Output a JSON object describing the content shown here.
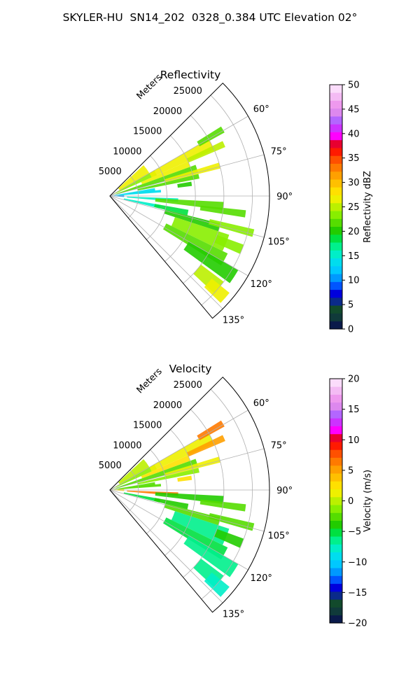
{
  "suptitle": "SKYLER-HU  SN14_202  0328_0.384 UTC Elevation 02°",
  "chart_data": [
    {
      "type": "polar-sector",
      "title": "Reflectivity",
      "radial_label": "Meters",
      "radial_ticks": [
        5000,
        10000,
        15000,
        20000,
        25000
      ],
      "radial_tick_labels": [
        "5000",
        "10000",
        "15000",
        "20000",
        "25000"
      ],
      "rlim": [
        0,
        28000
      ],
      "angle_range_deg": [
        45,
        140
      ],
      "angle_ticks_deg": [
        60,
        75,
        90,
        105,
        120,
        135
      ],
      "angle_tick_labels": [
        "60°",
        "75°",
        "90°",
        "105°",
        "120°",
        "135°"
      ],
      "grid": true,
      "colorbar": {
        "label": "Reflectivity dBZ",
        "min": 0,
        "max": 50,
        "ticks": [
          0,
          5,
          10,
          15,
          20,
          25,
          30,
          35,
          40,
          45,
          50
        ],
        "tick_labels": [
          "0",
          "5",
          "10",
          "15",
          "20",
          "25",
          "30",
          "35",
          "40",
          "45",
          "50"
        ],
        "colors": [
          "#0a1a4a",
          "#103a3a",
          "#124a2c",
          "#0a2a8a",
          "#0000dd",
          "#0055ff",
          "#0099ff",
          "#00c8ff",
          "#00ddee",
          "#00eec8",
          "#00f08c",
          "#00e040",
          "#22cc00",
          "#55dd00",
          "#88ee00",
          "#bbf000",
          "#eef000",
          "#ffe000",
          "#ffc000",
          "#ffa000",
          "#ff7a00",
          "#ff5000",
          "#ff1a00",
          "#e80030",
          "#ff00ff",
          "#cc33ff",
          "#b366ff",
          "#dd88ee",
          "#ee99ee",
          "#f4bbf4",
          "#fbdcfb"
        ]
      },
      "echoes": [
        {
          "a1": 47.5,
          "a2": 60.5,
          "r1": 2000,
          "r2": 8000,
          "value": 26
        },
        {
          "a1": 60,
          "a2": 66,
          "r1": 600,
          "r2": 9000,
          "value": 24
        },
        {
          "a1": 60,
          "a2": 66,
          "r1": 8000,
          "r2": 20000,
          "value": 26
        },
        {
          "a1": 66,
          "a2": 70,
          "r1": 6000,
          "r2": 15000,
          "value": 27
        },
        {
          "a1": 64,
          "a2": 67,
          "r1": 15000,
          "r2": 22000,
          "value": 25
        },
        {
          "a1": 58,
          "a2": 61,
          "r1": 18000,
          "r2": 23000,
          "value": 22
        },
        {
          "a1": 70,
          "a2": 75,
          "r1": 1200,
          "r2": 16000,
          "value": 22
        },
        {
          "a1": 73,
          "a2": 76,
          "r1": 10000,
          "r2": 20000,
          "value": 26
        },
        {
          "a1": 76,
          "a2": 79,
          "r1": 5000,
          "r2": 16000,
          "value": 21
        },
        {
          "a1": 80,
          "a2": 84,
          "r1": 800,
          "r2": 8000,
          "value": 14
        },
        {
          "a1": 83,
          "a2": 86,
          "r1": 1500,
          "r2": 9000,
          "value": 13
        },
        {
          "a1": 80,
          "a2": 83,
          "r1": 12000,
          "r2": 14500,
          "value": 20
        },
        {
          "a1": 86,
          "a2": 94,
          "r1": 300,
          "r2": 2500,
          "value": 11
        },
        {
          "a1": 92,
          "a2": 95,
          "r1": 3000,
          "r2": 12000,
          "value": 15
        },
        {
          "a1": 93,
          "a2": 97,
          "r1": 8000,
          "r2": 20000,
          "value": 21
        },
        {
          "a1": 96,
          "a2": 99,
          "r1": 16000,
          "r2": 24000,
          "value": 22
        },
        {
          "a1": 100,
          "a2": 104,
          "r1": 2500,
          "r2": 9000,
          "value": 15
        },
        {
          "a1": 100,
          "a2": 104,
          "r1": 8000,
          "r2": 14000,
          "value": 18
        },
        {
          "a1": 104,
          "a2": 108,
          "r1": 10000,
          "r2": 20000,
          "value": 20
        },
        {
          "a1": 103,
          "a2": 106,
          "r1": 18000,
          "r2": 26000,
          "value": 23
        },
        {
          "a1": 108,
          "a2": 116,
          "r1": 12000,
          "r2": 22000,
          "value": 23
        },
        {
          "a1": 116,
          "a2": 122,
          "r1": 11000,
          "r2": 23000,
          "value": 22
        },
        {
          "a1": 110,
          "a2": 114,
          "r1": 20000,
          "r2": 25000,
          "value": 24
        },
        {
          "a1": 120,
          "a2": 126,
          "r1": 16000,
          "r2": 26000,
          "value": 20
        },
        {
          "a1": 127,
          "a2": 133,
          "r1": 20000,
          "r2": 25000,
          "value": 25
        },
        {
          "a1": 129,
          "a2": 134,
          "r1": 23000,
          "r2": 27000,
          "value": 27
        }
      ]
    },
    {
      "type": "polar-sector",
      "title": "Velocity",
      "radial_label": "Meters",
      "radial_ticks": [
        5000,
        10000,
        15000,
        20000,
        25000
      ],
      "radial_tick_labels": [
        "5000",
        "10000",
        "15000",
        "20000",
        "25000"
      ],
      "rlim": [
        0,
        28000
      ],
      "angle_range_deg": [
        45,
        140
      ],
      "angle_ticks_deg": [
        60,
        75,
        90,
        105,
        120,
        135
      ],
      "angle_tick_labels": [
        "60°",
        "75°",
        "90°",
        "105°",
        "120°",
        "135°"
      ],
      "grid": true,
      "colorbar": {
        "label": "Velocity (m/s)",
        "min": -20,
        "max": 20,
        "ticks": [
          -20,
          -15,
          -10,
          -5,
          0,
          5,
          10,
          15,
          20
        ],
        "tick_labels": [
          "−20",
          "−15",
          "−10",
          "−5",
          "0",
          "5",
          "10",
          "15",
          "20"
        ],
        "colors": [
          "#0a1a4a",
          "#103a3a",
          "#124a2c",
          "#0a2a8a",
          "#0000dd",
          "#0055ff",
          "#0099ff",
          "#00c8ff",
          "#00ddee",
          "#00eec8",
          "#00f08c",
          "#00e040",
          "#22cc00",
          "#55dd00",
          "#88ee00",
          "#bbf000",
          "#eef000",
          "#ffe000",
          "#ffc000",
          "#ffa000",
          "#ff7a00",
          "#ff5000",
          "#ff1a00",
          "#e80030",
          "#ff00ff",
          "#cc33ff",
          "#b366ff",
          "#dd88ee",
          "#ee99ee",
          "#f4bbf4",
          "#fbdcfb"
        ]
      },
      "echoes": [
        {
          "a1": 47.5,
          "a2": 60.5,
          "r1": 2000,
          "r2": 8000,
          "value": 0
        },
        {
          "a1": 60,
          "a2": 66,
          "r1": 600,
          "r2": 9000,
          "value": -1
        },
        {
          "a1": 60,
          "a2": 66,
          "r1": 8000,
          "r2": 20000,
          "value": 1
        },
        {
          "a1": 66,
          "a2": 70,
          "r1": 6000,
          "r2": 15000,
          "value": 2
        },
        {
          "a1": 64,
          "a2": 67,
          "r1": 15000,
          "r2": 22000,
          "value": 5
        },
        {
          "a1": 58,
          "a2": 61,
          "r1": 18000,
          "r2": 23000,
          "value": 6
        },
        {
          "a1": 70,
          "a2": 75,
          "r1": 1200,
          "r2": 16000,
          "value": -2
        },
        {
          "a1": 73,
          "a2": 76,
          "r1": 10000,
          "r2": 20000,
          "value": 1
        },
        {
          "a1": 76,
          "a2": 79,
          "r1": 5000,
          "r2": 16000,
          "value": -1
        },
        {
          "a1": 80,
          "a2": 84,
          "r1": 800,
          "r2": 8000,
          "value": -3
        },
        {
          "a1": 83,
          "a2": 86,
          "r1": 1500,
          "r2": 9000,
          "value": -2
        },
        {
          "a1": 80,
          "a2": 83,
          "r1": 12000,
          "r2": 14500,
          "value": 3
        },
        {
          "a1": 86,
          "a2": 94,
          "r1": 300,
          "r2": 2500,
          "value": 2
        },
        {
          "a1": 92,
          "a2": 95,
          "r1": 3000,
          "r2": 12000,
          "value": 7
        },
        {
          "a1": 93,
          "a2": 97,
          "r1": 8000,
          "r2": 20000,
          "value": -4
        },
        {
          "a1": 96,
          "a2": 99,
          "r1": 16000,
          "r2": 24000,
          "value": -3
        },
        {
          "a1": 100,
          "a2": 104,
          "r1": 2500,
          "r2": 9000,
          "value": -5
        },
        {
          "a1": 100,
          "a2": 104,
          "r1": 8000,
          "r2": 14000,
          "value": -4
        },
        {
          "a1": 104,
          "a2": 108,
          "r1": 10000,
          "r2": 20000,
          "value": -3
        },
        {
          "a1": 103,
          "a2": 106,
          "r1": 18000,
          "r2": 26000,
          "value": -2
        },
        {
          "a1": 108,
          "a2": 116,
          "r1": 12000,
          "r2": 22000,
          "value": -6
        },
        {
          "a1": 116,
          "a2": 122,
          "r1": 11000,
          "r2": 23000,
          "value": -5
        },
        {
          "a1": 110,
          "a2": 114,
          "r1": 20000,
          "r2": 25000,
          "value": -4
        },
        {
          "a1": 120,
          "a2": 126,
          "r1": 16000,
          "r2": 26000,
          "value": -6
        },
        {
          "a1": 127,
          "a2": 133,
          "r1": 20000,
          "r2": 25000,
          "value": -7
        },
        {
          "a1": 129,
          "a2": 134,
          "r1": 23000,
          "r2": 27000,
          "value": -8
        }
      ]
    }
  ]
}
